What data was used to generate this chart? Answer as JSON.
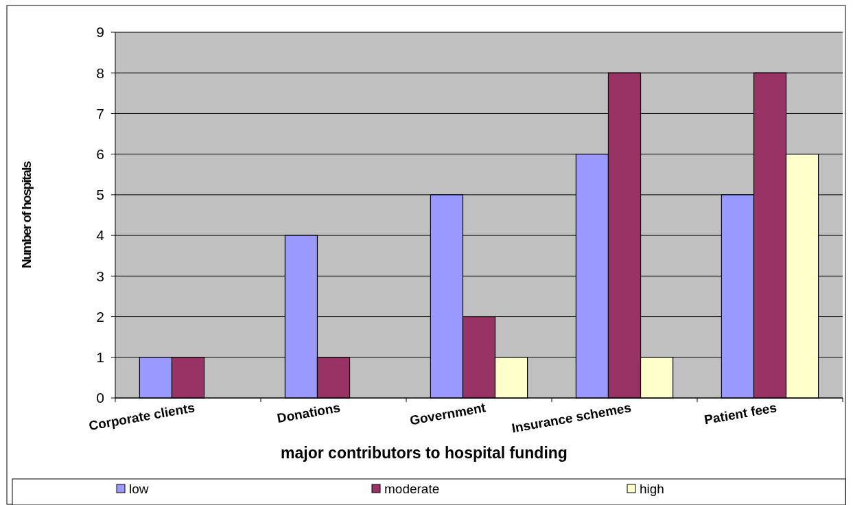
{
  "chart_data": {
    "type": "bar",
    "xlabel": "major contributors to hospital funding",
    "ylabel": "Number of hospitals",
    "categories": [
      "Corporate clients",
      "Donations",
      "Government",
      "Insurance schemes",
      "Patient fees"
    ],
    "series": [
      {
        "name": "low",
        "color": "#9999ff",
        "values": [
          1,
          4,
          5,
          6,
          5
        ]
      },
      {
        "name": "moderate",
        "color": "#993366",
        "values": [
          1,
          1,
          2,
          8,
          8
        ]
      },
      {
        "name": "high",
        "color": "#ffffcc",
        "values": [
          0,
          0,
          1,
          1,
          6
        ]
      }
    ],
    "ylim": [
      0,
      9
    ],
    "yticks": [
      0,
      1,
      2,
      3,
      4,
      5,
      6,
      7,
      8,
      9
    ],
    "grid": "y",
    "legend": "bottom"
  }
}
